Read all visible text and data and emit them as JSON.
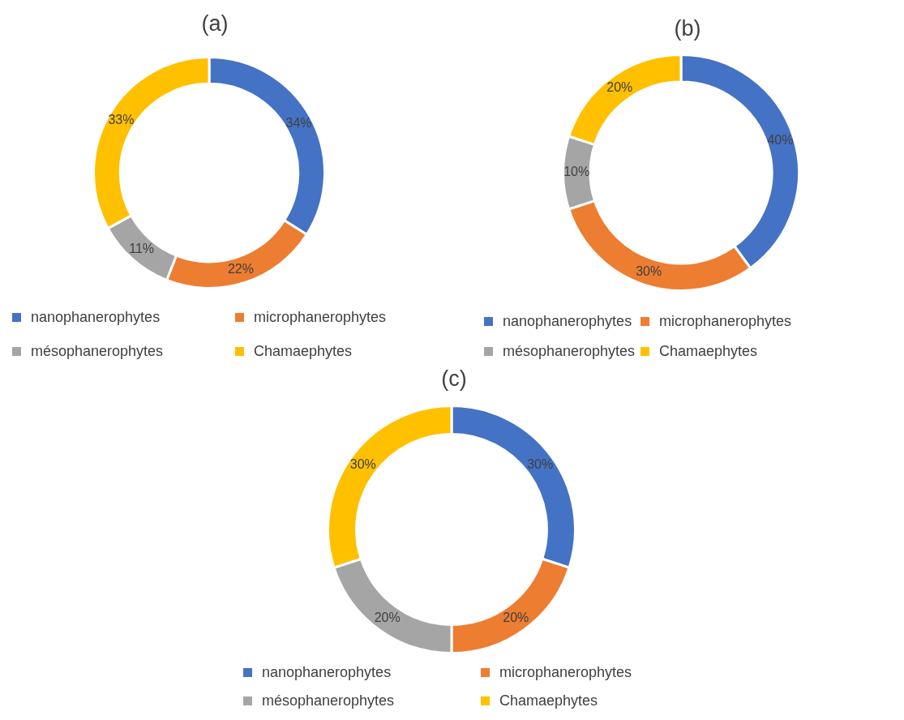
{
  "chart_data": [
    {
      "type": "donut",
      "title": "(a)",
      "categories": [
        "nanophanerophytes",
        "microphanerophytes",
        "mésophanerophytes",
        "Chamaephytes"
      ],
      "values": [
        34,
        22,
        11,
        33
      ],
      "colors": [
        "#4472c4",
        "#ed7d31",
        "#a5a5a5",
        "#ffc000"
      ],
      "value_labels": [
        "34%",
        "22%",
        "11%",
        "33%"
      ],
      "legend": "bottom"
    },
    {
      "type": "donut",
      "title": "(b)",
      "categories": [
        "nanophanerophytes",
        "microphanerophytes",
        "mésophanerophytes",
        "Chamaephytes"
      ],
      "values": [
        40,
        30,
        10,
        20
      ],
      "colors": [
        "#4472c4",
        "#ed7d31",
        "#a5a5a5",
        "#ffc000"
      ],
      "value_labels": [
        "40%",
        "30%",
        "10%",
        "20%"
      ],
      "legend": "bottom"
    },
    {
      "type": "donut",
      "title": "(c)",
      "categories": [
        "nanophanerophytes",
        "microphanerophytes",
        "mésophanerophytes",
        "Chamaephytes"
      ],
      "values": [
        30,
        20,
        20,
        30
      ],
      "colors": [
        "#4472c4",
        "#ed7d31",
        "#a5a5a5",
        "#ffc000"
      ],
      "value_labels": [
        "30%",
        "20%",
        "20%",
        "30%"
      ],
      "legend": "bottom"
    }
  ]
}
